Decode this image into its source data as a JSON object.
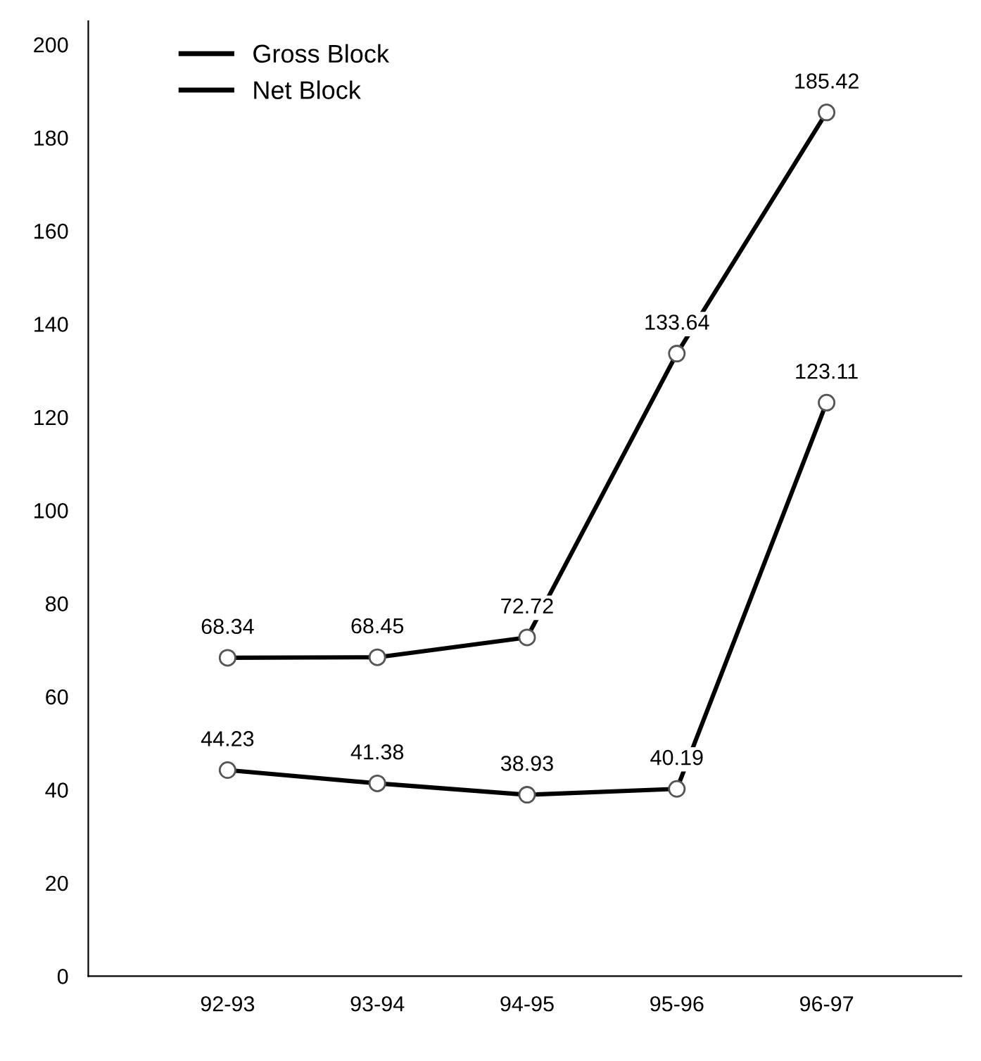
{
  "chart_data": {
    "type": "line",
    "categories": [
      "92-93",
      "93-94",
      "94-95",
      "95-96",
      "96-97"
    ],
    "series": [
      {
        "name": "Gross Block",
        "color": "#000000",
        "values": [
          68.34,
          68.45,
          72.72,
          133.64,
          185.42
        ]
      },
      {
        "name": "Net Block",
        "color": "#000000",
        "values": [
          44.23,
          41.38,
          38.93,
          40.19,
          123.11
        ]
      }
    ],
    "ylim": [
      0,
      205
    ],
    "yticks": [
      0,
      20,
      40,
      60,
      80,
      100,
      120,
      140,
      160,
      180,
      200
    ],
    "data_labels": true,
    "marker": "circle",
    "legend": "top left",
    "grid": false
  }
}
